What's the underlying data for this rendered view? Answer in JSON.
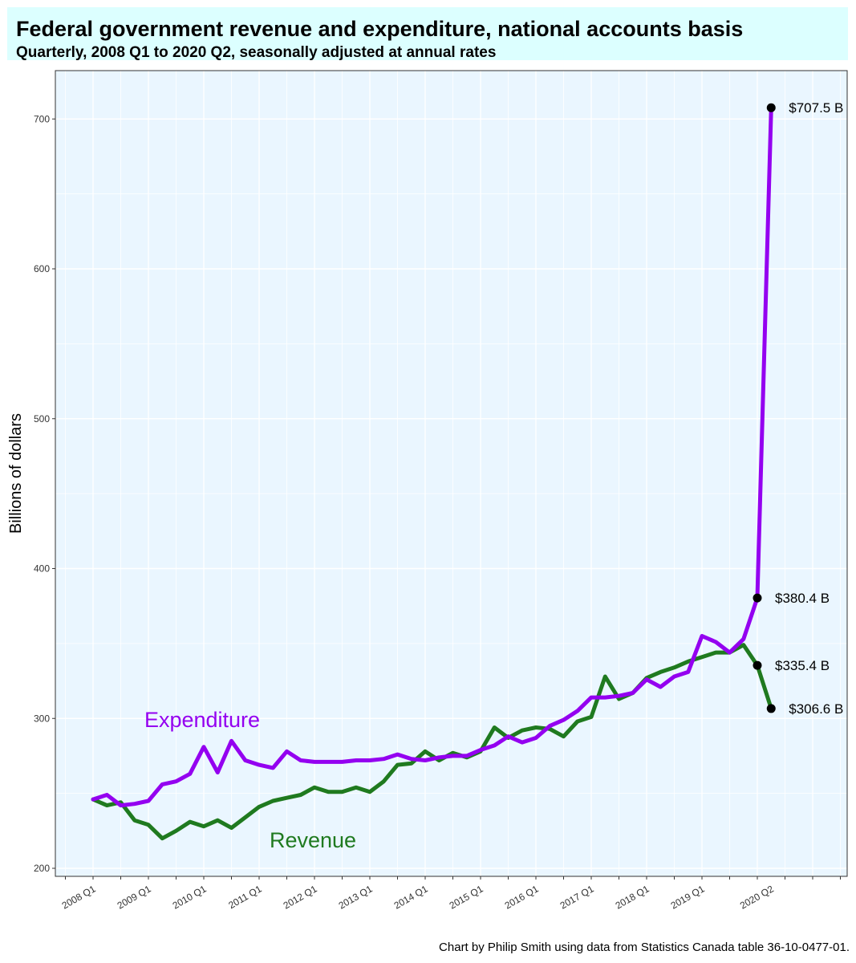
{
  "title": "Federal government revenue and expenditure, national accounts basis",
  "subtitle": "Quarterly, 2008 Q1 to 2020 Q2, seasonally adjusted at annual rates",
  "caption": "Chart by Philip Smith using data from Statistics Canada table 36-10-0477-01.",
  "chart_data": {
    "type": "line",
    "ylabel": "Billions of dollars",
    "ylim": [
      197,
      735
    ],
    "yticks": [
      200,
      300,
      400,
      500,
      600,
      700
    ],
    "x": [
      "2008 Q1",
      "2008 Q2",
      "2008 Q3",
      "2008 Q4",
      "2009 Q1",
      "2009 Q2",
      "2009 Q3",
      "2009 Q4",
      "2010 Q1",
      "2010 Q2",
      "2010 Q3",
      "2010 Q4",
      "2011 Q1",
      "2011 Q2",
      "2011 Q3",
      "2011 Q4",
      "2012 Q1",
      "2012 Q2",
      "2012 Q3",
      "2012 Q4",
      "2013 Q1",
      "2013 Q2",
      "2013 Q3",
      "2013 Q4",
      "2014 Q1",
      "2014 Q2",
      "2014 Q3",
      "2014 Q4",
      "2015 Q1",
      "2015 Q2",
      "2015 Q3",
      "2015 Q4",
      "2016 Q1",
      "2016 Q2",
      "2016 Q3",
      "2016 Q4",
      "2017 Q1",
      "2017 Q2",
      "2017 Q3",
      "2017 Q4",
      "2018 Q1",
      "2018 Q2",
      "2018 Q3",
      "2018 Q4",
      "2019 Q1",
      "2019 Q2",
      "2019 Q3",
      "2019 Q4",
      "2020 Q1",
      "2020 Q2"
    ],
    "xticks": [
      "2008 Q1",
      "2009 Q1",
      "2010 Q1",
      "2011 Q1",
      "2012 Q1",
      "2013 Q1",
      "2014 Q1",
      "2015 Q1",
      "2016 Q1",
      "2017 Q1",
      "2018 Q1",
      "2019 Q1",
      "2020 Q2"
    ],
    "grid": true,
    "series": [
      {
        "name": "Expenditure",
        "color": "#9400f0",
        "values": [
          246,
          249,
          242,
          243,
          245,
          256,
          258,
          263,
          281,
          264,
          285,
          272,
          269,
          267,
          278,
          272,
          271,
          271,
          271,
          272,
          272,
          273,
          276,
          273,
          272,
          274,
          275,
          275,
          279,
          282,
          288,
          284,
          287,
          295,
          299,
          305,
          314,
          314,
          315,
          317,
          326,
          321,
          328,
          331,
          355,
          351,
          344,
          353,
          380.4,
          707.5
        ]
      },
      {
        "name": "Revenue",
        "color": "#1f7a1f",
        "values": [
          246,
          242,
          244,
          232,
          229,
          220,
          225,
          231,
          228,
          232,
          227,
          234,
          241,
          245,
          247,
          249,
          254,
          251,
          251,
          254,
          251,
          258,
          269,
          270,
          278,
          272,
          277,
          274,
          278,
          294,
          287,
          292,
          294,
          293,
          288,
          298,
          301,
          328,
          313,
          317,
          327,
          331,
          334,
          338,
          341,
          344,
          344,
          349,
          335.4,
          306.6
        ]
      }
    ],
    "annotations": [
      {
        "text": "$707.5 B",
        "x": "2020 Q2",
        "y": 707.5
      },
      {
        "text": "$380.4 B",
        "x": "2020 Q1",
        "y": 380.4
      },
      {
        "text": "$335.4 B",
        "x": "2020 Q1",
        "y": 335.4
      },
      {
        "text": "$306.6 B",
        "x": "2020 Q2",
        "y": 306.6
      }
    ]
  }
}
